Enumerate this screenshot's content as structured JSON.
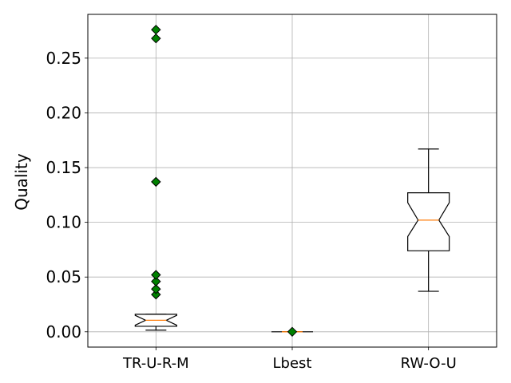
{
  "chart_data": {
    "type": "boxplot",
    "title": "",
    "xlabel": "",
    "ylabel": "Quality",
    "ylim": [
      -0.014,
      0.29
    ],
    "yticks": [
      "0.00",
      "0.05",
      "0.10",
      "0.15",
      "0.20",
      "0.25"
    ],
    "grid": true,
    "notched": true,
    "categories": [
      "TR-U-R-M",
      "Lbest",
      "RW-O-U"
    ],
    "boxes": [
      {
        "name": "TR-U-R-M",
        "whisker_low": 0.0015,
        "q1": 0.005,
        "median": 0.0105,
        "q3": 0.016,
        "whisker_high": 0.016,
        "notch_low": 0.006,
        "notch_high": 0.015,
        "outliers": [
          0.034,
          0.039,
          0.046,
          0.052,
          0.137,
          0.268,
          0.276
        ]
      },
      {
        "name": "Lbest",
        "whisker_low": 0.0,
        "q1": 0.0,
        "median": 0.0,
        "q3": 0.0,
        "whisker_high": 0.0,
        "notch_low": 0.0,
        "notch_high": 0.0,
        "outliers": [
          0.0
        ]
      },
      {
        "name": "RW-O-U",
        "whisker_low": 0.037,
        "q1": 0.074,
        "median": 0.102,
        "q3": 0.127,
        "whisker_high": 0.167,
        "notch_low": 0.087,
        "notch_high": 0.118,
        "outliers": []
      }
    ],
    "colors": {
      "box": "#000000",
      "median": "#ff7f0e",
      "outlier_fill": "#008000",
      "grid": "#b0b0b0"
    }
  }
}
